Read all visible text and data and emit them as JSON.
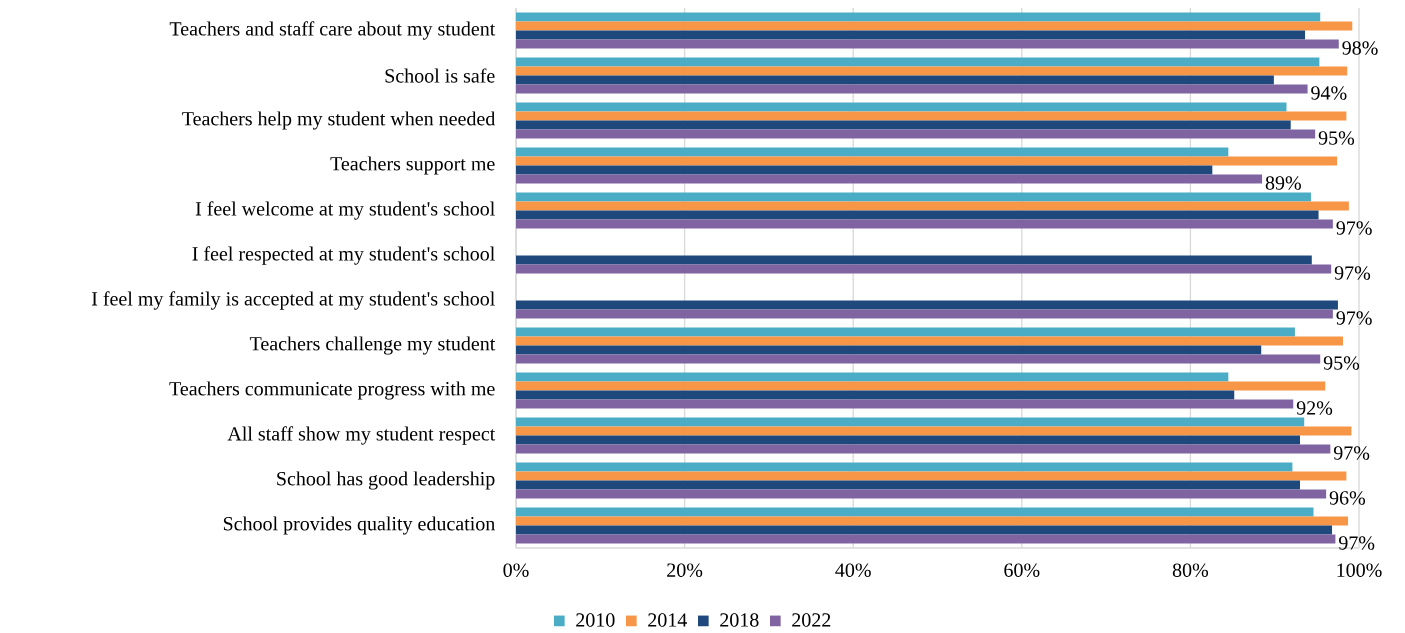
{
  "chart_data": {
    "type": "bar",
    "orientation": "horizontal",
    "categories": [
      "Teachers and staff care about my student",
      "School is safe",
      "Teachers help my student when needed",
      "Teachers support me",
      "I feel welcome at my student's school",
      "I feel respected at my student's school",
      "I feel my family is accepted at my student's school",
      "Teachers challenge my student",
      "Teachers communicate progress with me",
      "All staff show my student respect",
      "School has good leadership",
      "School provides quality education"
    ],
    "series": [
      {
        "name": "2010",
        "color": "#4bacc6",
        "values": [
          95.4,
          95.3,
          91.4,
          84.5,
          94.3,
          null,
          null,
          92.4,
          84.5,
          93.5,
          92.1,
          94.6
        ]
      },
      {
        "name": "2014",
        "color": "#f79646",
        "values": [
          99.2,
          98.6,
          98.5,
          97.4,
          98.8,
          null,
          null,
          98.1,
          96.0,
          99.1,
          98.5,
          98.7
        ]
      },
      {
        "name": "2018",
        "color": "#1f497d",
        "values": [
          93.6,
          89.9,
          91.9,
          82.6,
          95.2,
          94.4,
          97.5,
          88.4,
          85.2,
          93.0,
          93.0,
          96.8
        ]
      },
      {
        "name": "2022",
        "color": "#8064a2",
        "values": [
          97.6,
          93.9,
          94.8,
          88.5,
          96.9,
          96.7,
          96.9,
          95.4,
          92.2,
          96.6,
          96.1,
          97.2
        ],
        "value_labels": [
          "98%",
          "94%",
          "95%",
          "89%",
          "97%",
          "97%",
          "97%",
          "95%",
          "92%",
          "97%",
          "96%",
          "97%"
        ]
      }
    ],
    "xlim": [
      0,
      100
    ],
    "xticks": [
      {
        "value": 0,
        "label": "0%"
      },
      {
        "value": 20,
        "label": "20%"
      },
      {
        "value": 40,
        "label": "40%"
      },
      {
        "value": 60,
        "label": "60%"
      },
      {
        "value": 80,
        "label": "80%"
      },
      {
        "value": 100,
        "label": "100%"
      }
    ],
    "grid": "x",
    "legend": "bottom"
  }
}
